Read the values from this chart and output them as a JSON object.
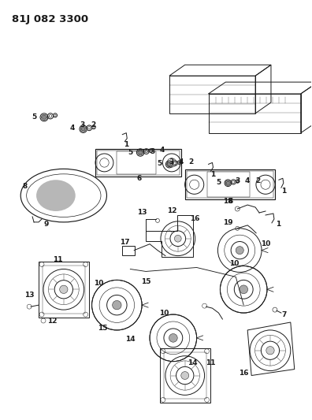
{
  "title": "81J 082 3300",
  "bg_color": "#ffffff",
  "fig_width": 3.96,
  "fig_height": 5.33,
  "line_color": "#1a1a1a",
  "dpi": 100
}
